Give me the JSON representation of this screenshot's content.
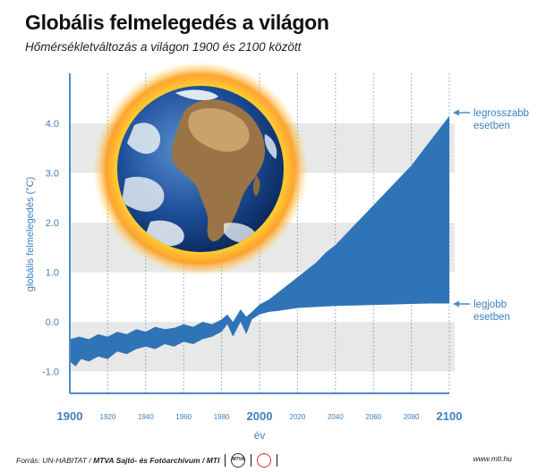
{
  "header": {
    "title": "Globális felmelegedés a világon",
    "subtitle": "Hőmérsékletváltozás a világon 1900 és 2100 között"
  },
  "footer": {
    "source_prefix": "Forrás: UN-HABITAT / ",
    "source_bold": "MTVA Sajtó- és Fotóarchívum / MTI",
    "logo1": "MTVA",
    "url": "www.mti.hu"
  },
  "colors": {
    "band": "#2f74b6",
    "axis": "#4f8ac6",
    "stripe": "#e8e8e8",
    "text": "#3f7fc0"
  },
  "chart_data": {
    "type": "area",
    "title": "Globális felmelegedés a világon",
    "xlabel": "év",
    "ylabel": "globális felmelegedés (°C)",
    "xlim": [
      1900,
      2100
    ],
    "ylim": [
      -1.1,
      4.5
    ],
    "x_ticks_major": [
      "1900",
      "2000",
      "2100"
    ],
    "x_ticks_minor": [
      "1920",
      "1940",
      "1960",
      "1980",
      "2020",
      "2040",
      "2060",
      "2080"
    ],
    "y_ticks": [
      "-1.0",
      "0.0",
      "1.0",
      "2.0",
      "3.0",
      "4.0"
    ],
    "series": [
      {
        "name": "legrosszabb esetben",
        "x": [
          1900,
          1905,
          1910,
          1915,
          1920,
          1925,
          1930,
          1935,
          1940,
          1945,
          1950,
          1955,
          1960,
          1965,
          1970,
          1975,
          1980,
          1983,
          1986,
          1990,
          1993,
          1996,
          2000,
          2005,
          2010,
          2015,
          2020,
          2025,
          2030,
          2035,
          2040,
          2045,
          2050,
          2055,
          2060,
          2065,
          2070,
          2075,
          2080,
          2085,
          2090,
          2095,
          2100
        ],
        "values": [
          -0.35,
          -0.3,
          -0.35,
          -0.25,
          -0.3,
          -0.2,
          -0.25,
          -0.15,
          -0.2,
          -0.1,
          -0.15,
          -0.12,
          -0.05,
          -0.1,
          0.0,
          -0.05,
          0.05,
          0.15,
          0.0,
          0.25,
          0.1,
          0.2,
          0.35,
          0.45,
          0.6,
          0.75,
          0.9,
          1.05,
          1.2,
          1.4,
          1.55,
          1.75,
          1.95,
          2.15,
          2.35,
          2.55,
          2.75,
          2.95,
          3.15,
          3.4,
          3.65,
          3.9,
          4.15
        ]
      },
      {
        "name": "legjobb esetben",
        "x": [
          1900,
          1903,
          1906,
          1910,
          1915,
          1920,
          1925,
          1930,
          1935,
          1940,
          1945,
          1950,
          1955,
          1960,
          1965,
          1970,
          1975,
          1980,
          1983,
          1986,
          1990,
          1993,
          1996,
          2000,
          2005,
          2010,
          2015,
          2020,
          2030,
          2040,
          2050,
          2060,
          2070,
          2080,
          2090,
          2100
        ],
        "values": [
          -0.8,
          -0.9,
          -0.75,
          -0.8,
          -0.7,
          -0.75,
          -0.6,
          -0.65,
          -0.55,
          -0.5,
          -0.55,
          -0.45,
          -0.5,
          -0.4,
          -0.45,
          -0.35,
          -0.3,
          -0.2,
          -0.05,
          -0.3,
          0.0,
          -0.25,
          0.05,
          0.15,
          0.2,
          0.22,
          0.25,
          0.28,
          0.3,
          0.32,
          0.33,
          0.34,
          0.35,
          0.36,
          0.37,
          0.37
        ]
      }
    ],
    "annotations": [
      {
        "text_line1": "legrosszabb",
        "text_line2": "esetben",
        "series": "legrosszabb esetben"
      },
      {
        "text_line1": "legjobb",
        "text_line2": "esetben",
        "series": "legjobb esetben"
      }
    ],
    "grid": "vertical dotted, horizontal stripes",
    "legend": "none"
  }
}
